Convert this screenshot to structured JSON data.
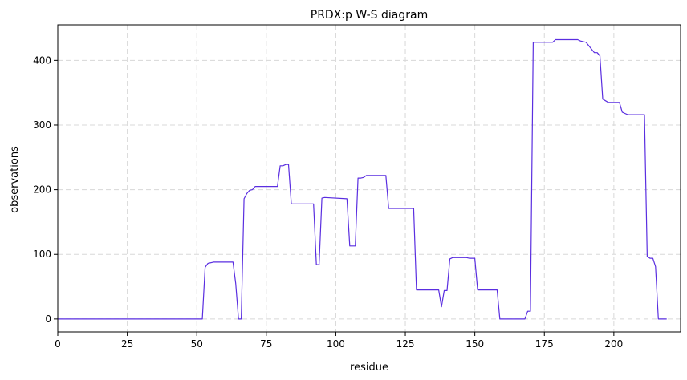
{
  "chart_data": {
    "type": "line",
    "title": "PRDX:p W-S diagram",
    "xlabel": "residue",
    "ylabel": "observations",
    "xlim": [
      0,
      224
    ],
    "ylim": [
      -20,
      455
    ],
    "xticks": [
      0,
      25,
      50,
      75,
      100,
      125,
      150,
      175,
      200
    ],
    "yticks": [
      0,
      100,
      200,
      300,
      400
    ],
    "grid": true,
    "line_color": "#5a2ee0",
    "series": [
      {
        "x": [
          0,
          52,
          53,
          54,
          56,
          63,
          64,
          65,
          66,
          67,
          68,
          69,
          70,
          71,
          72,
          79,
          80,
          81,
          82,
          83,
          84,
          92,
          93,
          94,
          95,
          96,
          104,
          105,
          106,
          107,
          108,
          109,
          110,
          111,
          112,
          118,
          119,
          120,
          128,
          129,
          130,
          137,
          138,
          139,
          140,
          141,
          142,
          143,
          147,
          148,
          150,
          151,
          152,
          158,
          159,
          168,
          169,
          170,
          171,
          178,
          179,
          186,
          187,
          188,
          190,
          193,
          194,
          195,
          196,
          198,
          200,
          201,
          202,
          203,
          204,
          205,
          210,
          211,
          212,
          213,
          214,
          215,
          216,
          219
        ],
        "y": [
          0,
          0,
          80,
          86,
          88,
          88,
          55,
          0,
          0,
          186,
          194,
          199,
          200,
          205,
          205,
          205,
          237,
          237,
          239,
          239,
          178,
          178,
          84,
          84,
          187,
          188,
          186,
          113,
          113,
          113,
          218,
          218,
          219,
          222,
          222,
          222,
          171,
          171,
          171,
          45,
          45,
          45,
          19,
          44,
          44,
          93,
          95,
          95,
          95,
          94,
          94,
          45,
          45,
          45,
          0,
          0,
          12,
          12,
          428,
          428,
          432,
          432,
          432,
          430,
          428,
          412,
          412,
          407,
          340,
          335,
          335,
          335,
          335,
          320,
          318,
          316,
          316,
          316,
          97,
          94,
          94,
          81,
          0,
          0
        ]
      }
    ]
  }
}
